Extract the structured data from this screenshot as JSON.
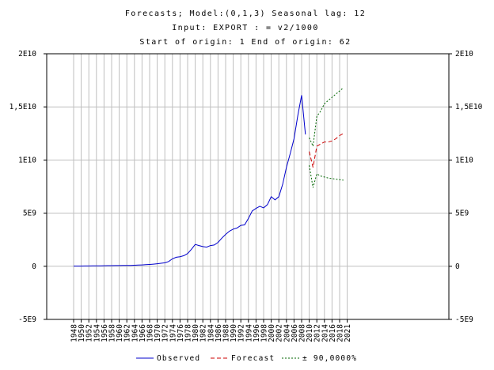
{
  "chart_data": {
    "type": "line",
    "title_lines": [
      "Forecasts; Model:(0,1,3) Seasonal lag: 12",
      "Input: EXPORT  : = v2/1000",
      "Start of origin: 1        End of origin: 62"
    ],
    "x_tick_labels": [
      "1948",
      "1950",
      "1952",
      "1954",
      "1956",
      "1958",
      "1960",
      "1962",
      "1964",
      "1966",
      "1968",
      "1970",
      "1972",
      "1974",
      "1976",
      "1978",
      "1980",
      "1982",
      "1984",
      "1986",
      "1988",
      "1990",
      "1992",
      "1994",
      "1996",
      "1998",
      "2000",
      "2002",
      "2004",
      "2006",
      "2008",
      "2010",
      "2012",
      "2014",
      "2016",
      "2018",
      "2021"
    ],
    "y_tick_labels": [
      "2E10",
      "1,5E10",
      "1E10",
      "5E9",
      "0",
      "-5E9"
    ],
    "y_tick_values": [
      20000000000,
      15000000000,
      10000000000,
      5000000000,
      0,
      -5000000000
    ],
    "ylim": [
      -5000000000,
      20000000000
    ],
    "grid": true,
    "legend_position": "bottom",
    "series": [
      {
        "name": "Observed",
        "color": "#0000cc",
        "style": "solid",
        "x": [
          1948,
          1949,
          1950,
          1951,
          1952,
          1953,
          1954,
          1955,
          1956,
          1957,
          1958,
          1959,
          1960,
          1961,
          1962,
          1963,
          1964,
          1965,
          1966,
          1967,
          1968,
          1969,
          1970,
          1971,
          1972,
          1973,
          1974,
          1975,
          1976,
          1977,
          1978,
          1979,
          1980,
          1981,
          1982,
          1983,
          1984,
          1985,
          1986,
          1987,
          1988,
          1989,
          1990,
          1991,
          1992,
          1993,
          1994,
          1995,
          1996,
          1997,
          1998,
          1999,
          2000,
          2001,
          2002,
          2003,
          2004,
          2005,
          2006,
          2007,
          2008,
          2009
        ],
        "values": [
          20000000,
          22000000,
          25000000,
          30000000,
          32000000,
          35000000,
          38000000,
          45000000,
          55000000,
          60000000,
          62000000,
          65000000,
          70000000,
          72000000,
          75000000,
          80000000,
          95000000,
          110000000,
          130000000,
          150000000,
          170000000,
          200000000,
          240000000,
          280000000,
          330000000,
          450000000,
          700000000,
          850000000,
          900000000,
          1000000000,
          1200000000,
          1600000000,
          2050000000,
          1950000000,
          1850000000,
          1800000000,
          1950000000,
          2000000000,
          2250000000,
          2650000000,
          3000000000,
          3300000000,
          3500000000,
          3600000000,
          3850000000,
          3900000000,
          4500000000,
          5200000000,
          5450000000,
          5650000000,
          5500000000,
          5800000000,
          6550000000,
          6250000000,
          6550000000,
          7700000000,
          9300000000,
          10600000000,
          12000000000,
          14200000000,
          16100000000,
          12400000000
        ]
      },
      {
        "name": "Forecast",
        "color": "#cc0000",
        "style": "dashed",
        "x": [
          2010,
          2011,
          2012,
          2013,
          2014,
          2015,
          2016,
          2017,
          2018,
          2019
        ],
        "values": [
          10800000000,
          9300000000,
          11300000000,
          11500000000,
          11700000000,
          11700000000,
          11800000000,
          12000000000,
          12300000000,
          12500000000
        ]
      },
      {
        "name": "± 90,0000%",
        "color": "#006600",
        "style": "dotted",
        "x": [
          2010,
          2011,
          2012,
          2013,
          2014,
          2015,
          2016,
          2017,
          2018,
          2019
        ],
        "values": [
          12100000000,
          11300000000,
          14100000000,
          14600000000,
          15300000000,
          15600000000,
          15900000000,
          16200000000,
          16500000000,
          16800000000
        ]
      },
      {
        "name": "± 90,0000%",
        "color": "#006600",
        "style": "dotted",
        "x": [
          2010,
          2011,
          2012,
          2013,
          2014,
          2015,
          2016,
          2017,
          2018,
          2019
        ],
        "values": [
          9500000000,
          7400000000,
          8700000000,
          8500000000,
          8400000000,
          8300000000,
          8250000000,
          8200000000,
          8150000000,
          8100000000
        ]
      }
    ],
    "legend": [
      {
        "label": "Observed",
        "color": "#0000cc",
        "style": "solid"
      },
      {
        "label": "Forecast",
        "color": "#cc0000",
        "style": "dashed"
      },
      {
        "label": "± 90,0000%",
        "color": "#006600",
        "style": "dotted"
      }
    ]
  }
}
